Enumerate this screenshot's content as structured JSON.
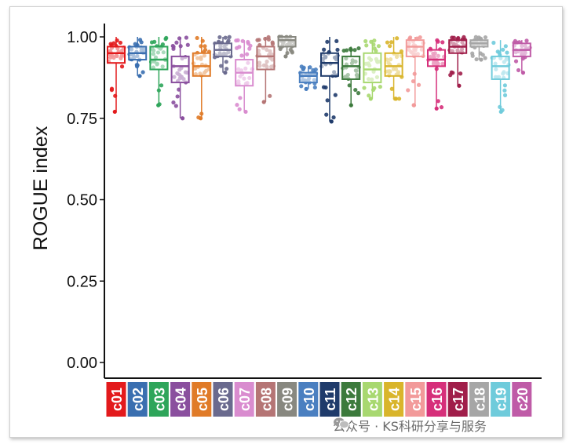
{
  "chart_data": {
    "type": "box",
    "title": "",
    "xlabel": "",
    "ylabel": "ROGUE index",
    "ylim": [
      0,
      1
    ],
    "yticks": [
      "0.00",
      "0.25",
      "0.50",
      "0.75",
      "1.00"
    ],
    "grid": false,
    "categories": [
      "c01",
      "c02",
      "c03",
      "c04",
      "c05",
      "c06",
      "c07",
      "c08",
      "c09",
      "c10",
      "c11",
      "c12",
      "c13",
      "c14",
      "c15",
      "c16",
      "c17",
      "c18",
      "c19",
      "c20"
    ],
    "colors": [
      "#e31a1c",
      "#3a6fb0",
      "#2ea55a",
      "#8a4f9e",
      "#e07b28",
      "#6a6a8e",
      "#d98ccf",
      "#b57575",
      "#888880",
      "#4a7fc0",
      "#1f3b6b",
      "#3c7a3c",
      "#a8d870",
      "#d9b52b",
      "#f29a9a",
      "#d62f7a",
      "#a01e4a",
      "#a6a6a6",
      "#6fcbdb",
      "#bf5ba7"
    ],
    "series": [
      {
        "category": "c01",
        "min": 0.77,
        "q1": 0.92,
        "median": 0.95,
        "q3": 0.97,
        "max": 1.0
      },
      {
        "category": "c02",
        "min": 0.88,
        "q1": 0.93,
        "median": 0.95,
        "q3": 0.97,
        "max": 1.0
      },
      {
        "category": "c03",
        "min": 0.79,
        "q1": 0.9,
        "median": 0.93,
        "q3": 0.97,
        "max": 1.0
      },
      {
        "category": "c04",
        "min": 0.75,
        "q1": 0.86,
        "median": 0.91,
        "q3": 0.94,
        "max": 1.0
      },
      {
        "category": "c05",
        "min": 0.75,
        "q1": 0.88,
        "median": 0.91,
        "q3": 0.95,
        "max": 1.0
      },
      {
        "category": "c06",
        "min": 0.89,
        "q1": 0.94,
        "median": 0.96,
        "q3": 0.98,
        "max": 1.0
      },
      {
        "category": "c07",
        "min": 0.77,
        "q1": 0.85,
        "median": 0.89,
        "q3": 0.93,
        "max": 0.99
      },
      {
        "category": "c08",
        "min": 0.8,
        "q1": 0.9,
        "median": 0.94,
        "q3": 0.97,
        "max": 1.0
      },
      {
        "category": "c09",
        "min": 0.94,
        "q1": 0.97,
        "median": 0.99,
        "q3": 1.0,
        "max": 1.0
      },
      {
        "category": "c10",
        "min": 0.84,
        "q1": 0.86,
        "median": 0.88,
        "q3": 0.89,
        "max": 0.91
      },
      {
        "category": "c11",
        "min": 0.74,
        "q1": 0.88,
        "median": 0.92,
        "q3": 0.95,
        "max": 1.0
      },
      {
        "category": "c12",
        "min": 0.79,
        "q1": 0.87,
        "median": 0.91,
        "q3": 0.94,
        "max": 0.97
      },
      {
        "category": "c13",
        "min": 0.81,
        "q1": 0.86,
        "median": 0.9,
        "q3": 0.95,
        "max": 0.99
      },
      {
        "category": "c14",
        "min": 0.81,
        "q1": 0.88,
        "median": 0.91,
        "q3": 0.95,
        "max": 1.0
      },
      {
        "category": "c15",
        "min": 0.79,
        "q1": 0.94,
        "median": 0.97,
        "q3": 0.99,
        "max": 1.0
      },
      {
        "category": "c16",
        "min": 0.78,
        "q1": 0.91,
        "median": 0.93,
        "q3": 0.96,
        "max": 0.99
      },
      {
        "category": "c17",
        "min": 0.85,
        "q1": 0.95,
        "median": 0.97,
        "q3": 0.99,
        "max": 1.0
      },
      {
        "category": "c18",
        "min": 0.93,
        "q1": 0.97,
        "median": 0.98,
        "q3": 0.99,
        "max": 1.0
      },
      {
        "category": "c19",
        "min": 0.77,
        "q1": 0.87,
        "median": 0.91,
        "q3": 0.94,
        "max": 0.99
      },
      {
        "category": "c20",
        "min": 0.89,
        "q1": 0.94,
        "median": 0.96,
        "q3": 0.98,
        "max": 0.99
      }
    ]
  },
  "watermark": {
    "text": "公众号 · KS科研分享与服务"
  }
}
